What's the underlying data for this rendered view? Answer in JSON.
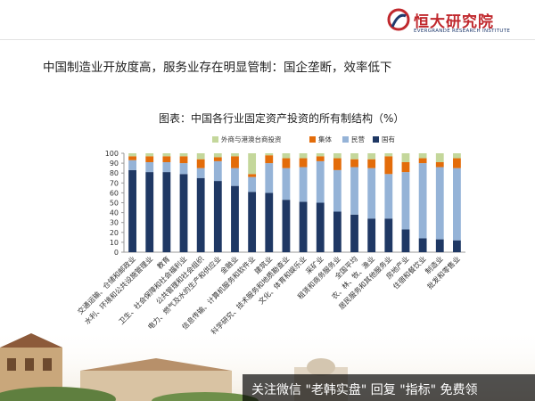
{
  "brand": {
    "name": "恒大研究院",
    "subtitle": "EVERGRANDE RESEARCH INSTITUTE",
    "color": "#c0282d"
  },
  "headline": "中国制造业开放度高，服务业存在明显管制：国企垄断，效率低下",
  "watermark": "关注微信 \"老韩实盘\" 回复 \"指标\" 免费领",
  "chart_data": {
    "type": "bar",
    "stacked": true,
    "title": "图表：中国各行业固定资产投资的所有制结构（%）",
    "ylim": [
      0,
      100
    ],
    "yticks": [
      0,
      10,
      20,
      30,
      40,
      50,
      60,
      70,
      80,
      90,
      100
    ],
    "grid": false,
    "legend_position": "top",
    "categories": [
      "交通运输、仓储和邮政业",
      "水利、环境和公共设施管理业",
      "教育",
      "卫生、社会保障和社会福利业",
      "公共管理和社会组织",
      "电力、燃气及水的生产和供应业",
      "金融业",
      "信息传输、计算机服务和软件业",
      "建筑业",
      "科学研究、技术服务和地质勘查业",
      "文化、体育和娱乐业",
      "采矿业",
      "租赁和商务服务业",
      "全国平均",
      "农、林、牧、渔业",
      "居民服务和其他服务业",
      "房地产业",
      "住宿和餐饮业",
      "制造业",
      "批发和零售业"
    ],
    "series": [
      {
        "name": "国有",
        "color": "#1f3864",
        "values": [
          83,
          81,
          81,
          79,
          75,
          72,
          67,
          61,
          60,
          53,
          51,
          50,
          41,
          38,
          34,
          34,
          23,
          14,
          13,
          12
        ]
      },
      {
        "name": "民营",
        "color": "#95b3d7",
        "values": [
          10,
          10,
          10,
          11,
          10,
          20,
          18,
          15,
          30,
          32,
          35,
          42,
          42,
          48,
          51,
          45,
          58,
          76,
          73,
          73
        ]
      },
      {
        "name": "集体",
        "color": "#e36c0a",
        "values": [
          4,
          6,
          6,
          7,
          9,
          4,
          12,
          3,
          8,
          10,
          9,
          5,
          12,
          8,
          9,
          18,
          10,
          5,
          5,
          10
        ]
      },
      {
        "name": "外商与港澳台商投资",
        "color": "#c4d79b",
        "values": [
          3,
          3,
          3,
          3,
          6,
          4,
          3,
          21,
          2,
          5,
          5,
          3,
          5,
          6,
          6,
          3,
          9,
          5,
          9,
          5
        ]
      }
    ]
  }
}
